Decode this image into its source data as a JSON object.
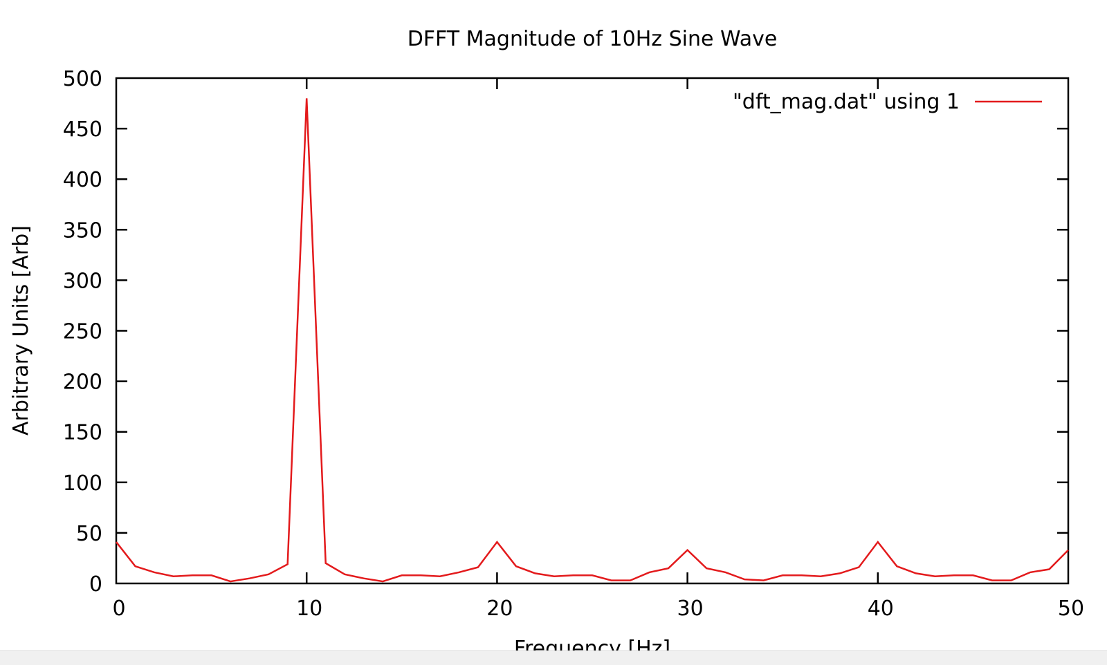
{
  "chart_data": {
    "type": "line",
    "title": "DFFT Magnitude of 10Hz Sine Wave",
    "xlabel": "Frequency [Hz]",
    "ylabel": "Arbitrary Units [Arb]",
    "xlim": [
      0,
      50
    ],
    "ylim": [
      0,
      500
    ],
    "xticks": [
      0,
      10,
      20,
      30,
      40,
      50
    ],
    "yticks": [
      0,
      50,
      100,
      150,
      200,
      250,
      300,
      350,
      400,
      450,
      500
    ],
    "grid": false,
    "legend_position": "top-right",
    "series": [
      {
        "name": "\"dft_mag.dat\" using 1",
        "color": "#e31a1c",
        "x": [
          0,
          1,
          2,
          3,
          4,
          5,
          6,
          7,
          8,
          9,
          10,
          11,
          12,
          13,
          14,
          15,
          16,
          17,
          18,
          19,
          20,
          21,
          22,
          23,
          24,
          25,
          26,
          27,
          28,
          29,
          30,
          31,
          32,
          33,
          34,
          35,
          36,
          37,
          38,
          39,
          40,
          41,
          42,
          43,
          44,
          45,
          46,
          47,
          48,
          49,
          50
        ],
        "values": [
          41,
          17,
          11,
          7,
          8,
          8,
          2,
          5,
          9,
          19,
          480,
          20,
          9,
          5,
          2,
          8,
          8,
          7,
          11,
          16,
          41,
          17,
          10,
          7,
          8,
          8,
          3,
          3,
          11,
          15,
          33,
          15,
          11,
          4,
          3,
          8,
          8,
          7,
          10,
          16,
          41,
          17,
          10,
          7,
          8,
          8,
          3,
          3,
          11,
          14,
          33
        ]
      }
    ]
  }
}
